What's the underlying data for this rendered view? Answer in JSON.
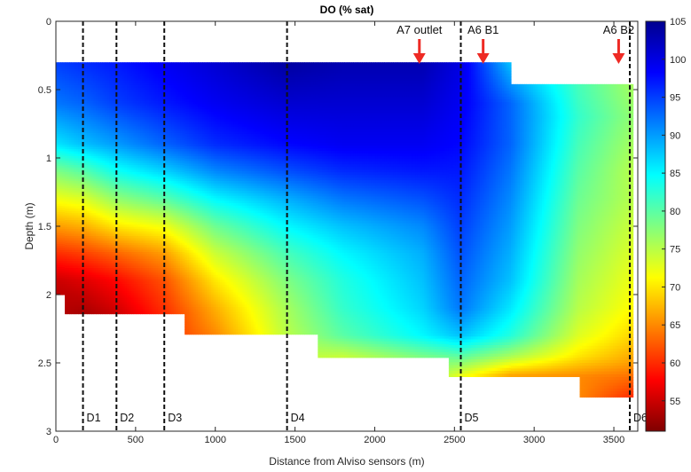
{
  "chart_data": {
    "type": "heatmap",
    "title": "DO (% sat)",
    "xlabel": "Distance from Alviso sensors (m)",
    "ylabel": "Depth (m)",
    "xlim": [
      0,
      3650
    ],
    "ylim": [
      0,
      3
    ],
    "y_reversed": true,
    "xticks": [
      0,
      500,
      1000,
      1500,
      2000,
      2500,
      3000,
      3500
    ],
    "yticks": [
      0,
      0.5,
      1,
      1.5,
      2,
      2.5,
      3
    ],
    "colorbar": {
      "range": [
        51,
        105
      ],
      "ticks": [
        55,
        60,
        65,
        70,
        75,
        80,
        85,
        90,
        95,
        100,
        105
      ],
      "colormap": "jet"
    },
    "colormap_stops": [
      "#7f0000",
      "#ff0000",
      "#ff8000",
      "#ffff00",
      "#80ff80",
      "#00ffff",
      "#0080ff",
      "#0000ff",
      "#00008f"
    ],
    "surface": [
      {
        "x": 0,
        "depth": 0.3
      },
      {
        "x": 2850,
        "depth": 0.3
      },
      {
        "x": 2850,
        "depth": 0.46
      },
      {
        "x": 3620,
        "depth": 0.46
      }
    ],
    "bottom": [
      {
        "x": 0,
        "depth": 2.0
      },
      {
        "x": 60,
        "depth": 2.0
      },
      {
        "x": 60,
        "depth": 2.14
      },
      {
        "x": 810,
        "depth": 2.14
      },
      {
        "x": 810,
        "depth": 2.29
      },
      {
        "x": 1640,
        "depth": 2.29
      },
      {
        "x": 1640,
        "depth": 2.46
      },
      {
        "x": 2470,
        "depth": 2.46
      },
      {
        "x": 2470,
        "depth": 2.6
      },
      {
        "x": 3280,
        "depth": 2.6
      },
      {
        "x": 3280,
        "depth": 2.75
      },
      {
        "x": 3620,
        "depth": 2.75
      }
    ],
    "do_profiles": [
      {
        "x": 0,
        "z": [
          0.3,
          0.6,
          0.9,
          1.1,
          1.3,
          1.5,
          1.7,
          1.9,
          2.0
        ],
        "do": [
          95,
          92,
          86,
          78,
          72,
          66,
          60,
          55,
          54
        ]
      },
      {
        "x": 170,
        "z": [
          0.3,
          0.6,
          0.9,
          1.1,
          1.3,
          1.5,
          1.7,
          1.9,
          2.14
        ],
        "do": [
          96,
          93,
          88,
          80,
          73,
          67,
          61,
          56,
          53
        ]
      },
      {
        "x": 380,
        "z": [
          0.3,
          0.6,
          0.9,
          1.1,
          1.3,
          1.5,
          1.7,
          1.9,
          2.14
        ],
        "do": [
          97,
          95,
          90,
          84,
          77,
          70,
          63,
          58,
          55
        ]
      },
      {
        "x": 680,
        "z": [
          0.3,
          0.6,
          0.9,
          1.1,
          1.3,
          1.5,
          1.7,
          1.9,
          2.14
        ],
        "do": [
          99,
          97,
          93,
          87,
          80,
          72,
          66,
          62,
          60
        ]
      },
      {
        "x": 1000,
        "z": [
          0.3,
          0.6,
          0.9,
          1.1,
          1.3,
          1.5,
          1.7,
          1.9,
          2.1,
          2.29
        ],
        "do": [
          101,
          99,
          96,
          91,
          85,
          79,
          74,
          70,
          67,
          65
        ]
      },
      {
        "x": 1450,
        "z": [
          0.3,
          0.6,
          0.9,
          1.1,
          1.3,
          1.5,
          1.7,
          1.9,
          2.1,
          2.29
        ],
        "do": [
          104,
          101,
          98,
          94,
          89,
          85,
          81,
          78,
          76,
          75
        ]
      },
      {
        "x": 1800,
        "z": [
          0.3,
          0.6,
          0.9,
          1.1,
          1.3,
          1.5,
          1.7,
          1.9,
          2.1,
          2.3,
          2.46
        ],
        "do": [
          103,
          101,
          99,
          96,
          92,
          88,
          85,
          83,
          82,
          80,
          74
        ]
      },
      {
        "x": 2300,
        "z": [
          0.3,
          0.6,
          0.9,
          1.1,
          1.3,
          1.5,
          1.7,
          1.9,
          2.1,
          2.3,
          2.46
        ],
        "do": [
          103,
          101,
          99,
          97,
          94,
          91,
          89,
          88,
          87,
          85,
          78
        ]
      },
      {
        "x": 2540,
        "z": [
          0.3,
          0.6,
          0.9,
          1.1,
          1.3,
          1.5,
          1.7,
          1.9,
          2.1,
          2.3,
          2.45,
          2.6
        ],
        "do": [
          100,
          99,
          98,
          97,
          96,
          95,
          94,
          93,
          92,
          88,
          80,
          72
        ]
      },
      {
        "x": 2850,
        "z": [
          0.3,
          0.6,
          0.9,
          1.1,
          1.3,
          1.5,
          1.7,
          1.9,
          2.1,
          2.3,
          2.45,
          2.6
        ],
        "do": [
          88,
          93,
          93,
          92,
          91,
          90,
          89,
          88,
          86,
          83,
          76,
          66
        ]
      },
      {
        "x": 3280,
        "z": [
          0.46,
          0.7,
          0.9,
          1.1,
          1.3,
          1.5,
          1.7,
          1.9,
          2.1,
          2.3,
          2.45,
          2.6
        ],
        "do": [
          81,
          82,
          81,
          80,
          79,
          78,
          77,
          76,
          75,
          73,
          70,
          65
        ]
      },
      {
        "x": 3620,
        "z": [
          0.46,
          0.7,
          0.9,
          1.1,
          1.3,
          1.5,
          1.7,
          1.9,
          2.1,
          2.3,
          2.5,
          2.75
        ],
        "do": [
          76,
          77,
          76,
          75,
          75,
          74,
          73,
          72,
          71,
          69,
          66,
          60
        ]
      }
    ],
    "stations": [
      {
        "label": "D1",
        "x": 170
      },
      {
        "label": "D2",
        "x": 380
      },
      {
        "label": "D3",
        "x": 680
      },
      {
        "label": "D4",
        "x": 1450
      },
      {
        "label": "D5",
        "x": 2540
      },
      {
        "label": "D6",
        "x": 3600
      }
    ],
    "annotations": [
      {
        "text": "A7 outlet",
        "x": 2280
      },
      {
        "text": "A6 B1",
        "x": 2680
      },
      {
        "text": "A6 B2",
        "x": 3530
      }
    ],
    "annotation_arrow_color": "#ee2a24"
  }
}
